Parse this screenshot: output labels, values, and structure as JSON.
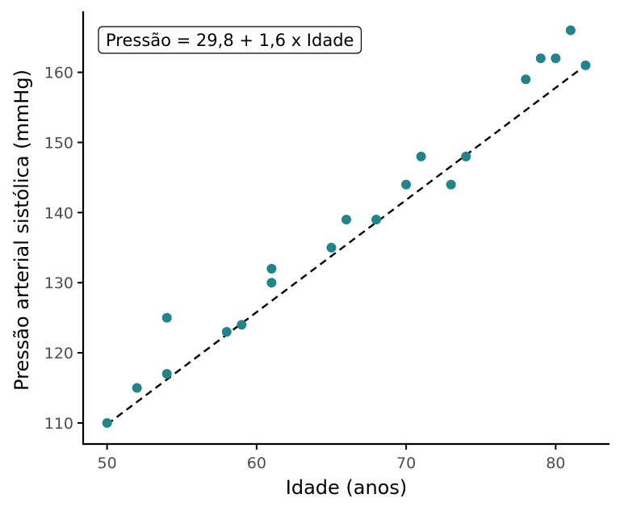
{
  "chart_data": {
    "type": "scatter",
    "xlabel": "Idade (anos)",
    "ylabel": "Pressão arterial sistólica (mmHg)",
    "xlim": [
      48.4,
      83.6
    ],
    "ylim": [
      107.0,
      168.7
    ],
    "x_ticks": [
      50,
      60,
      70,
      80
    ],
    "y_ticks": [
      110,
      120,
      130,
      140,
      150,
      160
    ],
    "grid": false,
    "legend": "none",
    "annotation": "Pressão = 29,8 + 1,6 x Idade",
    "regression": {
      "intercept": 29.8,
      "slope": 1.6,
      "x_range": [
        50,
        82
      ],
      "style": "dashed"
    },
    "points": [
      {
        "x": 50,
        "y": 110
      },
      {
        "x": 52,
        "y": 115
      },
      {
        "x": 54,
        "y": 117
      },
      {
        "x": 54,
        "y": 125
      },
      {
        "x": 58,
        "y": 123
      },
      {
        "x": 59,
        "y": 124
      },
      {
        "x": 61,
        "y": 130
      },
      {
        "x": 61,
        "y": 132
      },
      {
        "x": 65,
        "y": 135
      },
      {
        "x": 66,
        "y": 139
      },
      {
        "x": 68,
        "y": 139
      },
      {
        "x": 70,
        "y": 144
      },
      {
        "x": 71,
        "y": 148
      },
      {
        "x": 73,
        "y": 144
      },
      {
        "x": 74,
        "y": 148
      },
      {
        "x": 78,
        "y": 159
      },
      {
        "x": 79,
        "y": 162
      },
      {
        "x": 80,
        "y": 162
      },
      {
        "x": 81,
        "y": 166
      },
      {
        "x": 82,
        "y": 161
      }
    ]
  },
  "colors": {
    "point": "#21838b",
    "line": "#000000",
    "axis": "#000000"
  }
}
